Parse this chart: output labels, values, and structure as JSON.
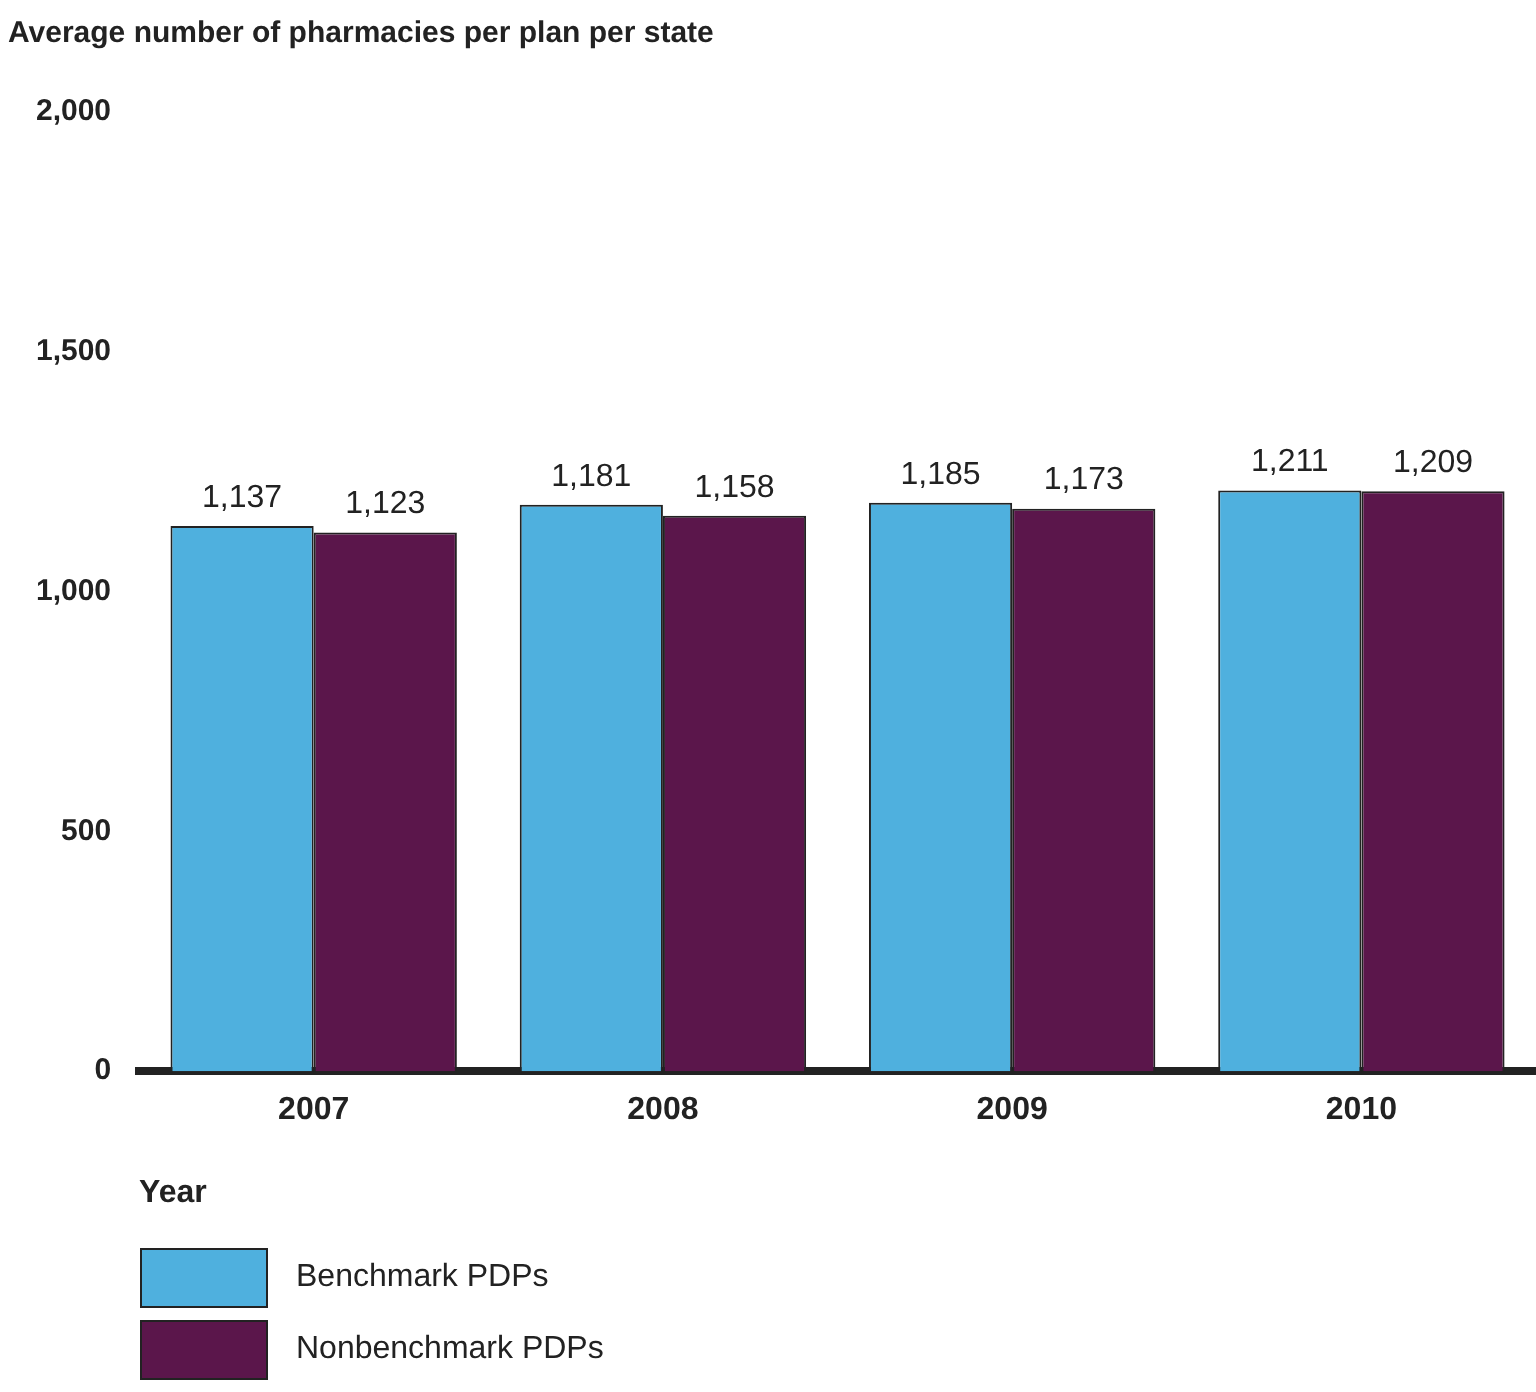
{
  "chart_data": {
    "type": "bar",
    "ylabel": "Average number of pharmacies per plan per state",
    "xlabel": "Year",
    "categories": [
      "2007",
      "2008",
      "2009",
      "2010"
    ],
    "series": [
      {
        "name": "Benchmark PDPs",
        "color": "#4fb0de",
        "values": [
          1137,
          1181,
          1185,
          1211
        ],
        "value_labels": [
          "1,137",
          "1,181",
          "1,185",
          "1,211"
        ]
      },
      {
        "name": "Nonbenchmark PDPs",
        "color": "#5b164b",
        "values": [
          1123,
          1158,
          1173,
          1209
        ],
        "value_labels": [
          "1,123",
          "1,158",
          "1,173",
          "1,209"
        ]
      }
    ],
    "ylim": [
      0,
      2000
    ],
    "yticks": [
      {
        "value": 0,
        "label": "0"
      },
      {
        "value": 500,
        "label": "500"
      },
      {
        "value": 1000,
        "label": "1,000"
      },
      {
        "value": 1500,
        "label": "1,500"
      },
      {
        "value": 2000,
        "label": "2,000"
      }
    ],
    "grid": false,
    "legend": "bottom left"
  }
}
